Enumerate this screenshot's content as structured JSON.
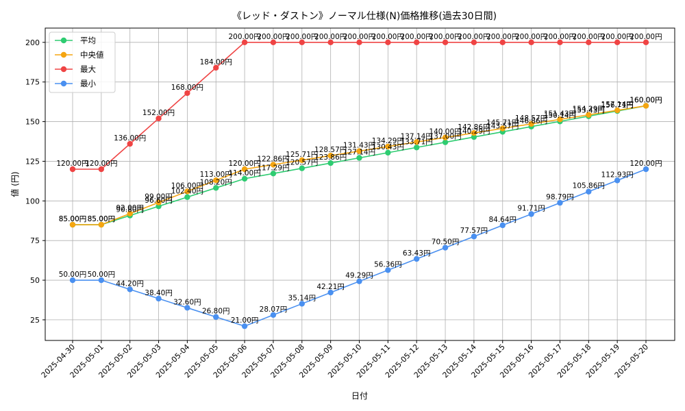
{
  "chart_data": {
    "type": "line",
    "title": "《レッド・ダストン》ノーマル仕様(N)価格推移(過去30日間)",
    "xlabel": "日付",
    "ylabel": "値 (円)",
    "ylim": [
      12,
      209
    ],
    "yticks": [
      25,
      50,
      75,
      100,
      125,
      150,
      175,
      200
    ],
    "grid": true,
    "legend_position": "top-left",
    "value_suffix": "円",
    "categories": [
      "2025-04-30",
      "2025-05-01",
      "2025-05-02",
      "2025-05-03",
      "2025-05-04",
      "2025-05-05",
      "2025-05-06",
      "2025-05-07",
      "2025-05-08",
      "2025-05-09",
      "2025-05-10",
      "2025-05-11",
      "2025-05-12",
      "2025-05-13",
      "2025-05-14",
      "2025-05-15",
      "2025-05-16",
      "2025-05-17",
      "2025-05-18",
      "2025-05-19",
      "2025-05-20"
    ],
    "series": [
      {
        "name": "平均",
        "color": "#2ecc71",
        "values": [
          85.0,
          85.0,
          90.8,
          96.6,
          102.4,
          108.2,
          114.0,
          117.29,
          120.57,
          123.86,
          127.14,
          130.43,
          133.71,
          137.0,
          140.29,
          143.57,
          146.86,
          150.14,
          153.43,
          156.71,
          160.0
        ]
      },
      {
        "name": "中央値",
        "color": "#f5a511",
        "values": [
          85.0,
          85.0,
          92.0,
          99.0,
          106.0,
          113.0,
          120.0,
          122.86,
          125.71,
          128.57,
          131.43,
          134.29,
          137.14,
          140.0,
          142.86,
          145.71,
          148.57,
          151.43,
          154.29,
          157.14,
          160.0
        ]
      },
      {
        "name": "最大",
        "color": "#ef4444",
        "values": [
          120.0,
          120.0,
          136.0,
          152.0,
          168.0,
          184.0,
          200.0,
          200.0,
          200.0,
          200.0,
          200.0,
          200.0,
          200.0,
          200.0,
          200.0,
          200.0,
          200.0,
          200.0,
          200.0,
          200.0,
          200.0
        ]
      },
      {
        "name": "最小",
        "color": "#4a90f0",
        "values": [
          50.0,
          50.0,
          44.2,
          38.4,
          32.6,
          26.8,
          21.0,
          28.07,
          35.14,
          42.21,
          49.29,
          56.36,
          63.43,
          70.5,
          77.57,
          84.64,
          91.71,
          98.79,
          105.86,
          112.93,
          120.0
        ]
      }
    ]
  }
}
